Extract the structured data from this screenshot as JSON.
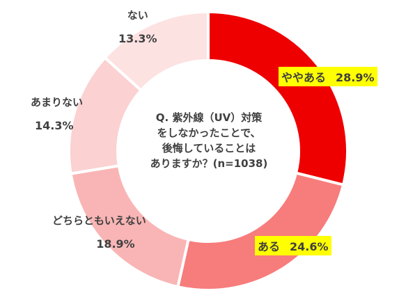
{
  "chart_data": {
    "type": "pie",
    "donut": true,
    "center_text": [
      "Q. 紫外線（UV）対策",
      "をしなかったことで、",
      "後悔していることは",
      "ありますか？(n=1038)"
    ],
    "categories": [
      "ややある",
      "ある",
      "どちらともいえない",
      "あまりない",
      "ない"
    ],
    "values": [
      28.9,
      24.6,
      18.9,
      14.3,
      13.3
    ],
    "value_labels": [
      "28.9%",
      "24.6%",
      "18.9%",
      "14.3%",
      "13.3%"
    ],
    "colors": [
      "#ee0000",
      "#f77c7c",
      "#f9b5b5",
      "#fbd1d1",
      "#fde2e2"
    ],
    "highlight_color": "#ffff00"
  }
}
